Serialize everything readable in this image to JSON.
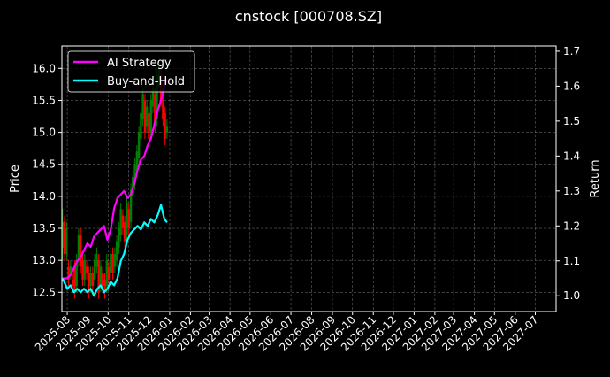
{
  "chart_data": {
    "type": "line",
    "title": "cnstock [000708.SZ]",
    "xlabel": "",
    "ylabel": "Price",
    "y2label": "Return",
    "ylim": [
      12.2,
      16.35
    ],
    "y2lim": [
      0.955,
      1.715
    ],
    "xlim": [
      "2025-07-24",
      "2027-08-01"
    ],
    "yticks": [
      12.5,
      13.0,
      13.5,
      14.0,
      14.5,
      15.0,
      15.5,
      16.0
    ],
    "ytick_labels": [
      "12.5",
      "13.0",
      "13.5",
      "14.0",
      "14.5",
      "15.0",
      "15.5",
      "16.0"
    ],
    "y2ticks": [
      1.0,
      1.1,
      1.2,
      1.3,
      1.4,
      1.5,
      1.6,
      1.7
    ],
    "y2tick_labels": [
      "1.0",
      "1.1",
      "1.2",
      "1.3",
      "1.4",
      "1.5",
      "1.6",
      "1.7"
    ],
    "xticks": [
      "2025-08-01",
      "2025-09-01",
      "2025-10-01",
      "2025-11-01",
      "2025-12-01",
      "2026-01-01",
      "2026-02-01",
      "2026-03-01",
      "2026-04-01",
      "2026-05-01",
      "2026-06-01",
      "2026-07-01",
      "2026-08-01",
      "2026-09-01",
      "2026-10-01",
      "2026-11-01",
      "2026-12-01",
      "2027-01-01",
      "2027-02-01",
      "2027-03-01",
      "2027-04-01",
      "2027-05-01",
      "2027-06-01",
      "2027-07-01"
    ],
    "xtick_labels": [
      "2025-08",
      "2025-09",
      "2025-10",
      "2025-11",
      "2025-12",
      "2026-01",
      "2026-02",
      "2026-03",
      "2026-04",
      "2026-05",
      "2026-06",
      "2026-07",
      "2026-08",
      "2026-09",
      "2026-10",
      "2026-11",
      "2026-12",
      "2027-01",
      "2027-02",
      "2027-03",
      "2027-04",
      "2027-05",
      "2027-06",
      "2027-07"
    ],
    "grid": true,
    "legend_position": "top-left",
    "background": "#000000",
    "series": [
      {
        "name": "AI Strategy",
        "axis": "right",
        "color": "#ff00ff",
        "x": [
          "2025-07-25",
          "2025-08-01",
          "2025-08-06",
          "2025-08-11",
          "2025-08-16",
          "2025-08-21",
          "2025-08-26",
          "2025-08-31",
          "2025-09-05",
          "2025-09-10",
          "2025-09-15",
          "2025-09-20",
          "2025-09-25",
          "2025-09-30",
          "2025-10-05",
          "2025-10-10",
          "2025-10-15",
          "2025-10-20",
          "2025-10-25",
          "2025-10-30",
          "2025-11-04",
          "2025-11-09",
          "2025-11-14",
          "2025-11-19",
          "2025-11-24",
          "2025-11-29",
          "2025-12-04",
          "2025-12-09",
          "2025-12-14",
          "2025-12-19",
          "2025-12-24",
          "2025-12-28"
        ],
        "values": [
          1.05,
          1.05,
          1.06,
          1.08,
          1.1,
          1.11,
          1.13,
          1.15,
          1.14,
          1.17,
          1.18,
          1.19,
          1.2,
          1.16,
          1.19,
          1.25,
          1.28,
          1.29,
          1.3,
          1.28,
          1.29,
          1.32,
          1.36,
          1.39,
          1.4,
          1.43,
          1.45,
          1.49,
          1.53,
          1.56,
          1.6,
          1.62
        ]
      },
      {
        "name": "Buy-and-Hold",
        "axis": "right",
        "color": "#00ffff",
        "x": [
          "2025-07-25",
          "2025-08-01",
          "2025-08-06",
          "2025-08-11",
          "2025-08-16",
          "2025-08-21",
          "2025-08-26",
          "2025-08-31",
          "2025-09-05",
          "2025-09-10",
          "2025-09-15",
          "2025-09-20",
          "2025-09-25",
          "2025-09-30",
          "2025-10-05",
          "2025-10-10",
          "2025-10-15",
          "2025-10-20",
          "2025-10-25",
          "2025-10-30",
          "2025-11-04",
          "2025-11-09",
          "2025-11-14",
          "2025-11-19",
          "2025-11-24",
          "2025-11-29",
          "2025-12-04",
          "2025-12-09",
          "2025-12-14",
          "2025-12-19",
          "2025-12-24",
          "2025-12-28"
        ],
        "values": [
          1.05,
          1.02,
          1.03,
          1.01,
          1.02,
          1.01,
          1.02,
          1.01,
          1.02,
          1.0,
          1.02,
          1.03,
          1.01,
          1.02,
          1.04,
          1.03,
          1.05,
          1.1,
          1.12,
          1.16,
          1.18,
          1.19,
          1.2,
          1.19,
          1.21,
          1.2,
          1.22,
          1.21,
          1.23,
          1.26,
          1.22,
          1.21
        ]
      }
    ],
    "candles": {
      "axis": "left",
      "up_color": "#008000",
      "down_color": "#ff0000",
      "x": [
        "2025-07-25",
        "2025-07-28",
        "2025-07-31",
        "2025-08-03",
        "2025-08-06",
        "2025-08-09",
        "2025-08-12",
        "2025-08-15",
        "2025-08-18",
        "2025-08-21",
        "2025-08-24",
        "2025-08-27",
        "2025-08-30",
        "2025-09-02",
        "2025-09-05",
        "2025-09-08",
        "2025-09-11",
        "2025-09-14",
        "2025-09-17",
        "2025-09-20",
        "2025-09-23",
        "2025-09-26",
        "2025-09-29",
        "2025-10-02",
        "2025-10-05",
        "2025-10-08",
        "2025-10-11",
        "2025-10-14",
        "2025-10-17",
        "2025-10-20",
        "2025-10-23",
        "2025-10-26",
        "2025-10-29",
        "2025-11-01",
        "2025-11-04",
        "2025-11-07",
        "2025-11-10",
        "2025-11-13",
        "2025-11-16",
        "2025-11-19",
        "2025-11-22",
        "2025-11-25",
        "2025-11-28",
        "2025-12-01",
        "2025-12-04",
        "2025-12-07",
        "2025-12-10",
        "2025-12-13",
        "2025-12-16",
        "2025-12-19",
        "2025-12-22",
        "2025-12-25",
        "2025-12-28"
      ],
      "open": [
        13.2,
        13.6,
        13.1,
        12.9,
        12.8,
        12.7,
        12.9,
        12.6,
        13.0,
        13.4,
        13.0,
        12.7,
        12.9,
        12.8,
        12.6,
        12.8,
        12.7,
        12.9,
        13.0,
        12.6,
        12.8,
        12.7,
        12.6,
        12.9,
        12.8,
        13.1,
        12.9,
        13.0,
        13.2,
        13.4,
        13.7,
        13.6,
        13.4,
        13.8,
        13.6,
        14.0,
        14.2,
        14.4,
        14.6,
        14.9,
        15.2,
        15.5,
        15.1,
        15.3,
        15.0,
        15.4,
        15.6,
        15.2,
        15.8,
        15.9,
        15.6,
        15.3,
        15.0
      ],
      "close": [
        13.6,
        13.1,
        13.5,
        12.7,
        12.9,
        12.6,
        12.5,
        13.0,
        13.4,
        12.9,
        12.7,
        13.0,
        12.8,
        12.5,
        12.8,
        12.6,
        13.0,
        13.1,
        12.5,
        12.9,
        12.6,
        12.5,
        13.0,
        12.7,
        13.1,
        12.8,
        13.1,
        13.3,
        13.5,
        13.8,
        13.5,
        13.3,
        13.9,
        13.5,
        14.1,
        14.3,
        14.5,
        14.7,
        15.0,
        15.3,
        15.6,
        15.0,
        15.4,
        14.9,
        15.5,
        15.7,
        15.1,
        15.9,
        16.0,
        15.5,
        15.2,
        14.9,
        15.1
      ],
      "high": [
        13.8,
        13.7,
        13.6,
        13.0,
        13.0,
        12.8,
        13.0,
        13.1,
        13.5,
        13.5,
        13.1,
        13.1,
        13.0,
        12.9,
        12.9,
        12.9,
        13.1,
        13.2,
        13.1,
        13.0,
        12.9,
        12.8,
        13.1,
        13.0,
        13.2,
        13.2,
        13.2,
        13.4,
        13.6,
        13.9,
        13.8,
        13.7,
        14.0,
        13.9,
        14.2,
        14.4,
        14.6,
        14.8,
        15.1,
        15.4,
        15.7,
        15.6,
        15.5,
        15.4,
        15.6,
        15.8,
        15.7,
        16.0,
        16.1,
        16.0,
        15.7,
        15.4,
        15.2
      ],
      "low": [
        13.0,
        13.0,
        13.0,
        12.6,
        12.7,
        12.5,
        12.4,
        12.5,
        12.9,
        12.8,
        12.6,
        12.6,
        12.7,
        12.4,
        12.5,
        12.5,
        12.6,
        12.8,
        12.4,
        12.5,
        12.5,
        12.4,
        12.5,
        12.6,
        12.7,
        12.7,
        12.8,
        12.9,
        13.1,
        13.3,
        13.4,
        13.2,
        13.3,
        13.4,
        13.5,
        13.9,
        14.1,
        14.3,
        14.5,
        14.8,
        15.1,
        14.9,
        15.0,
        14.8,
        14.9,
        15.3,
        15.0,
        15.1,
        15.7,
        15.4,
        15.1,
        14.8,
        14.9
      ]
    }
  }
}
